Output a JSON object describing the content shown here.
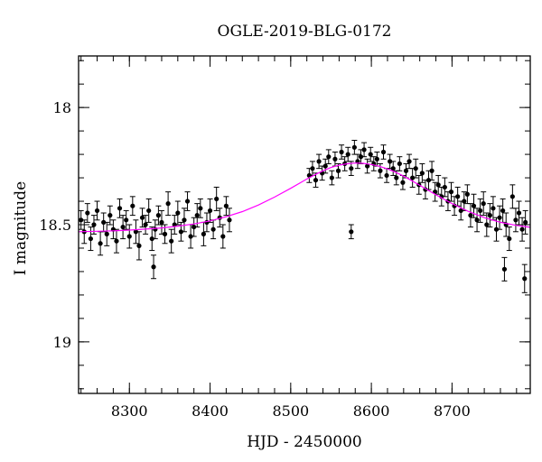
{
  "chart_data": {
    "type": "scatter",
    "title": "OGLE-2019-BLG-0172",
    "xlabel": "HJD - 2450000",
    "ylabel": "I magnitude",
    "xlim": [
      8237,
      8797
    ],
    "ylim": [
      19.22,
      17.78
    ],
    "y_inverted": true,
    "grid": false,
    "x_major_ticks": [
      8300,
      8400,
      8500,
      8600,
      8700
    ],
    "x_major_tick_labels": [
      "8300",
      "8400",
      "8500",
      "8600",
      "8700"
    ],
    "x_minor_step": 20,
    "y_major_ticks": [
      18,
      18.5,
      19
    ],
    "y_major_tick_labels": [
      "18",
      "18.5",
      "19"
    ],
    "y_minor_step": 0.1,
    "colors": {
      "points": "#000000",
      "model": "#ff00ff"
    },
    "series": [
      {
        "kind": "points",
        "x": [
          8240,
          8244,
          8248,
          8252,
          8256,
          8260,
          8264,
          8268,
          8272,
          8276,
          8280,
          8284,
          8288,
          8292,
          8296,
          8300,
          8304,
          8308,
          8312,
          8316,
          8320,
          8324,
          8328,
          8332,
          8336,
          8340,
          8344,
          8348,
          8352,
          8356,
          8360,
          8364,
          8368,
          8372,
          8376,
          8380,
          8384,
          8388,
          8392,
          8396,
          8400,
          8404,
          8408,
          8412,
          8416,
          8420,
          8424,
          8523,
          8527,
          8531,
          8535,
          8539,
          8543,
          8547,
          8551,
          8555,
          8559,
          8563,
          8567,
          8571,
          8575,
          8579,
          8583,
          8587,
          8591,
          8595,
          8599,
          8603,
          8607,
          8611,
          8615,
          8619,
          8623,
          8627,
          8631,
          8635,
          8639,
          8643,
          8647,
          8651,
          8655,
          8659,
          8663,
          8667,
          8671,
          8675,
          8679,
          8683,
          8687,
          8691,
          8695,
          8699,
          8703,
          8707,
          8711,
          8715,
          8719,
          8723,
          8727,
          8731,
          8735,
          8739,
          8743,
          8747,
          8751,
          8755,
          8759,
          8763,
          8767,
          8771,
          8775,
          8779,
          8783,
          8787,
          8791
        ],
        "y": [
          18.48,
          18.53,
          18.45,
          18.56,
          18.5,
          18.44,
          18.58,
          18.49,
          18.54,
          18.46,
          18.52,
          18.57,
          18.43,
          18.51,
          18.48,
          18.55,
          18.42,
          18.53,
          18.59,
          18.47,
          18.5,
          18.44,
          18.56,
          18.52,
          18.46,
          18.49,
          18.54,
          18.41,
          18.57,
          18.5,
          18.45,
          18.53,
          18.48,
          18.4,
          18.55,
          18.51,
          18.46,
          18.43,
          18.54,
          18.49,
          18.44,
          18.52,
          18.39,
          18.47,
          18.55,
          18.42,
          18.48,
          18.29,
          18.26,
          18.31,
          18.23,
          18.28,
          18.25,
          18.21,
          18.3,
          18.22,
          18.27,
          18.19,
          18.24,
          18.2,
          18.26,
          18.17,
          18.23,
          18.21,
          18.18,
          18.25,
          18.2,
          18.24,
          18.22,
          18.27,
          18.19,
          18.29,
          18.23,
          18.26,
          18.3,
          18.24,
          18.32,
          18.27,
          18.23,
          18.3,
          18.26,
          18.33,
          18.28,
          18.35,
          18.31,
          18.27,
          18.36,
          18.33,
          18.38,
          18.34,
          18.4,
          18.36,
          18.42,
          18.38,
          18.44,
          18.4,
          18.37,
          18.46,
          18.42,
          18.48,
          18.44,
          18.41,
          18.5,
          18.46,
          18.43,
          18.52,
          18.47,
          18.44,
          18.5,
          18.56,
          18.38,
          18.48,
          18.45,
          18.52,
          18.49
        ],
        "errors": [
          0.04,
          0.05,
          0.04,
          0.05,
          0.04,
          0.04,
          0.05,
          0.04,
          0.05,
          0.04,
          0.04,
          0.05,
          0.04,
          0.05,
          0.04,
          0.05,
          0.04,
          0.05,
          0.06,
          0.04,
          0.04,
          0.05,
          0.05,
          0.04,
          0.04,
          0.05,
          0.04,
          0.05,
          0.05,
          0.04,
          0.05,
          0.04,
          0.05,
          0.04,
          0.05,
          0.04,
          0.05,
          0.04,
          0.05,
          0.04,
          0.05,
          0.04,
          0.05,
          0.04,
          0.05,
          0.04,
          0.05,
          0.03,
          0.03,
          0.03,
          0.03,
          0.03,
          0.03,
          0.03,
          0.03,
          0.03,
          0.03,
          0.03,
          0.03,
          0.03,
          0.03,
          0.03,
          0.03,
          0.03,
          0.03,
          0.03,
          0.03,
          0.03,
          0.03,
          0.03,
          0.03,
          0.03,
          0.03,
          0.03,
          0.03,
          0.03,
          0.03,
          0.03,
          0.03,
          0.04,
          0.04,
          0.04,
          0.04,
          0.04,
          0.04,
          0.04,
          0.04,
          0.04,
          0.04,
          0.04,
          0.04,
          0.04,
          0.04,
          0.04,
          0.04,
          0.04,
          0.04,
          0.05,
          0.05,
          0.05,
          0.05,
          0.05,
          0.05,
          0.05,
          0.05,
          0.05,
          0.05,
          0.05,
          0.05,
          0.05,
          0.05,
          0.05,
          0.05,
          0.05,
          0.05
        ]
      },
      {
        "kind": "outliers",
        "x": [
          8330,
          8575,
          8765,
          8790
        ],
        "y": [
          18.68,
          18.53,
          18.69,
          18.73
        ],
        "errors": [
          0.05,
          0.03,
          0.05,
          0.06
        ]
      },
      {
        "kind": "model",
        "x": [
          8237,
          8260,
          8280,
          8300,
          8320,
          8340,
          8360,
          8380,
          8400,
          8420,
          8440,
          8460,
          8480,
          8500,
          8520,
          8530,
          8540,
          8550,
          8560,
          8570,
          8580,
          8590,
          8600,
          8610,
          8620,
          8630,
          8640,
          8650,
          8660,
          8680,
          8700,
          8720,
          8740,
          8760,
          8780,
          8797
        ],
        "y": [
          18.53,
          18.528,
          18.526,
          18.523,
          18.519,
          18.514,
          18.506,
          18.497,
          18.484,
          18.466,
          18.444,
          18.416,
          18.382,
          18.345,
          18.305,
          18.287,
          18.27,
          18.256,
          18.246,
          18.24,
          18.237,
          18.238,
          18.243,
          18.251,
          18.262,
          18.276,
          18.293,
          18.312,
          18.332,
          18.372,
          18.41,
          18.443,
          18.47,
          18.49,
          18.503,
          18.511
        ]
      }
    ]
  }
}
